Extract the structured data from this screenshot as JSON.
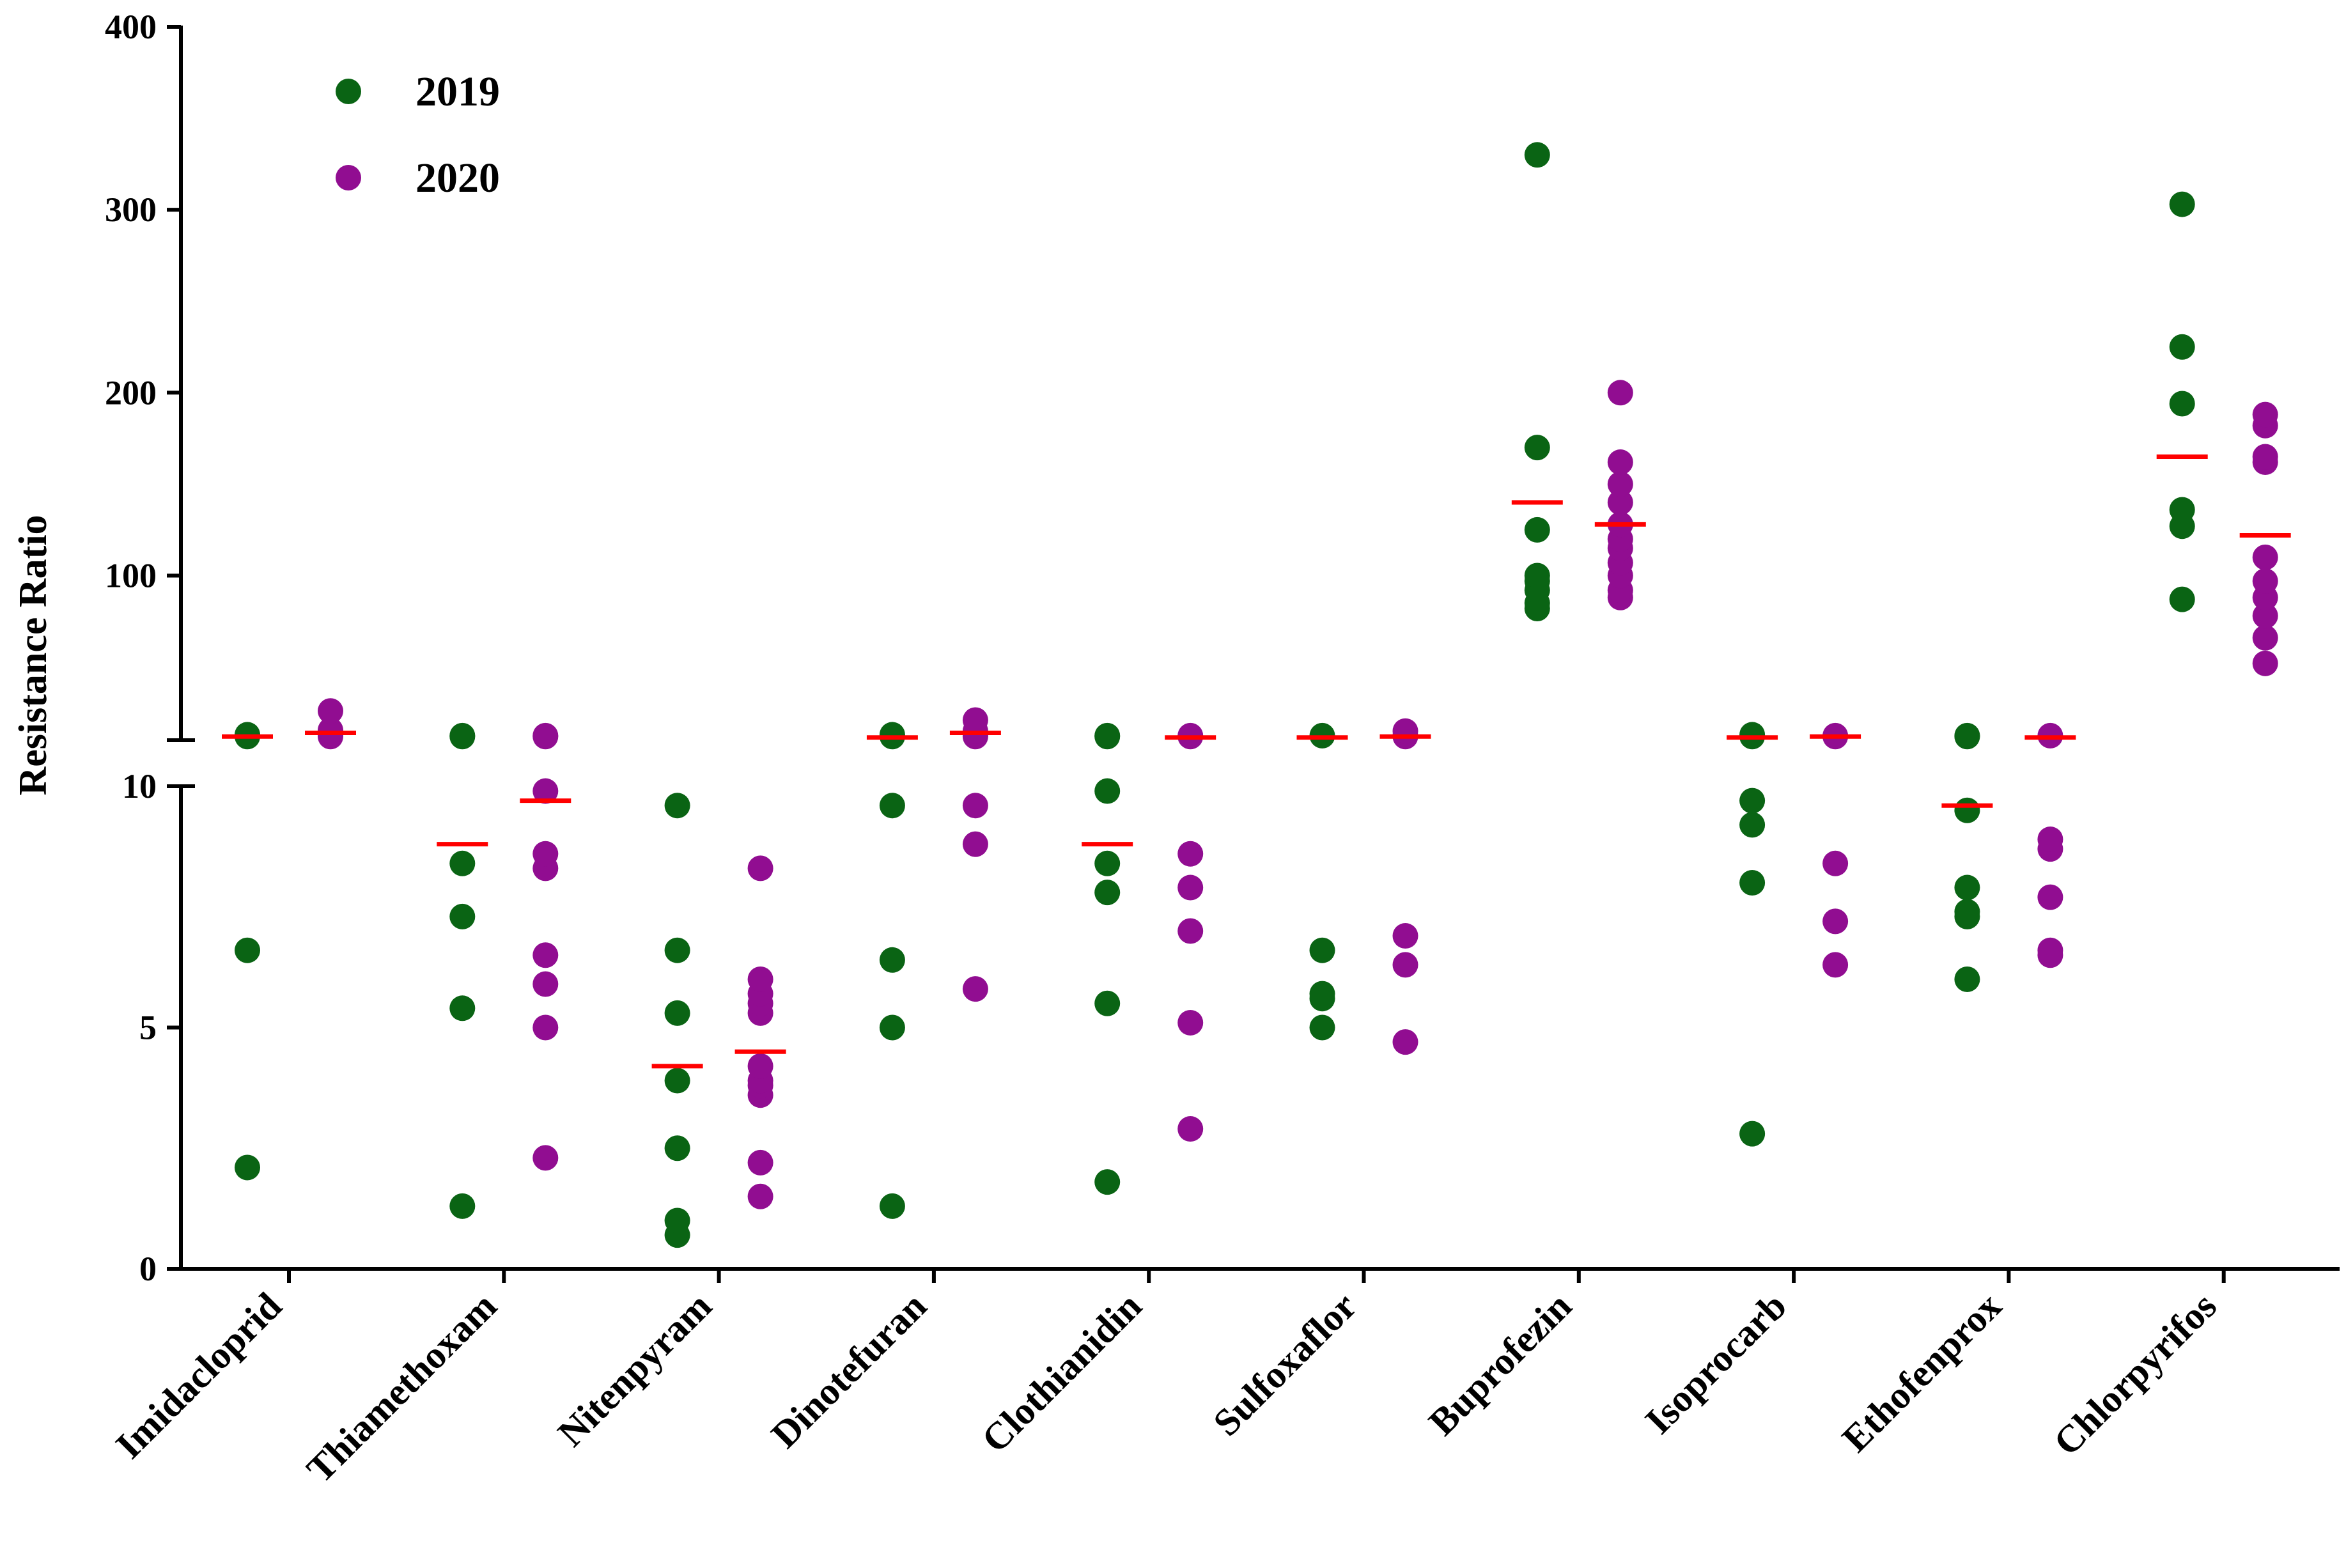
{
  "chart_data": {
    "type": "scatter",
    "title": "",
    "xlabel": "",
    "ylabel": "Resistance Ratio",
    "axis_break": {
      "lower_range": [
        0,
        10
      ],
      "upper_range": [
        10,
        400
      ],
      "lower_ticks": [
        "0",
        "5",
        "10"
      ],
      "upper_ticks": [
        "100",
        "200",
        "300",
        "400"
      ],
      "upper_tick_values": [
        100,
        200,
        300,
        400
      ]
    },
    "categories": [
      "Imidacloprid",
      "Thiamethoxam",
      "Nitenpyram",
      "Dinotefuran",
      "Clothianidin",
      "Sulfoxaflor",
      "Buprofezin",
      "Isoprocarb",
      "Ethofenprox",
      "Chlorpyrifos"
    ],
    "legend": {
      "position": "top-left",
      "entries": [
        "2019",
        "2020"
      ]
    },
    "series": [
      {
        "name": "2019",
        "color": "#0a6414",
        "points": [
          [
            2.1,
            6.6,
            12,
            12.5,
            13
          ],
          [
            1.3,
            5.4,
            7.3,
            8.4,
            12,
            12.5
          ],
          [
            0.7,
            1.0,
            2.5,
            3.9,
            5.3,
            6.6,
            9.6
          ],
          [
            1.3,
            5.0,
            6.4,
            9.6,
            12,
            13
          ],
          [
            1.8,
            5.5,
            7.8,
            8.4,
            9.9,
            12,
            12.5
          ],
          [
            5.0,
            5.6,
            5.7,
            6.6,
            12.5
          ],
          [
            82,
            85,
            92,
            97,
            100,
            125,
            170,
            330
          ],
          [
            2.8,
            8.0,
            9.2,
            9.7,
            12,
            13
          ],
          [
            6.0,
            7.3,
            7.4,
            7.9,
            9.5,
            12,
            12.5
          ],
          [
            87,
            127,
            136,
            194,
            225,
            303
          ]
        ],
        "means": [
          12,
          8.8,
          4.2,
          11.5,
          8.8,
          11.5,
          140,
          11.5,
          9.6,
          165
        ]
      },
      {
        "name": "2020",
        "color": "#910d91",
        "points": [
          [
            12,
            13,
            14,
            14.5,
            15,
            15.5,
            26
          ],
          [
            2.3,
            5.0,
            5.9,
            6.5,
            8.3,
            8.6,
            9.9,
            12,
            12.5
          ],
          [
            1.5,
            2.2,
            3.6,
            3.8,
            3.9,
            4.2,
            5.3,
            5.5,
            5.7,
            6.0,
            8.3
          ],
          [
            5.8,
            8.8,
            9.6,
            12,
            13,
            14,
            15,
            21
          ],
          [
            2.9,
            5.1,
            7.0,
            7.9,
            8.6,
            12,
            12.5
          ],
          [
            4.7,
            6.3,
            6.9,
            12,
            12.5,
            15
          ],
          [
            88,
            92,
            100,
            107,
            115,
            120,
            128,
            140,
            150,
            162,
            200
          ],
          [
            6.3,
            7.2,
            8.4,
            12,
            12.5
          ],
          [
            6.5,
            6.6,
            7.7,
            8.7,
            8.9,
            12.5
          ],
          [
            52,
            66,
            78,
            88,
            97,
            110,
            162,
            165,
            182,
            188
          ]
        ],
        "means": [
          14,
          9.7,
          4.5,
          14,
          11.5,
          12,
          128,
          12,
          11.5,
          122
        ]
      }
    ],
    "mean_marker_color": "#ff0000"
  }
}
